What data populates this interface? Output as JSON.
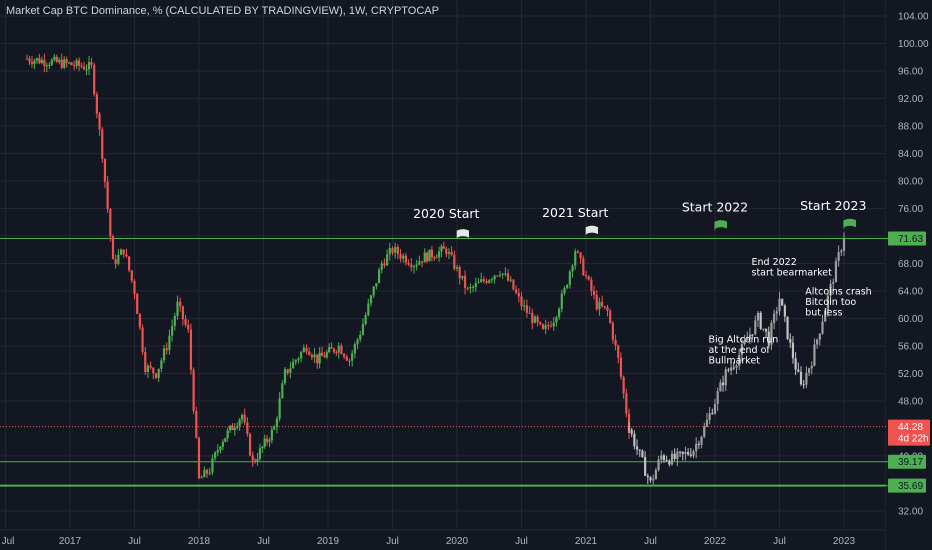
{
  "colors": {
    "background": "#131722",
    "grid": "#232734",
    "up": "#26a69a",
    "up_bright": "#4caf50",
    "down": "#ef5350",
    "projection": "#9e9e9e",
    "level_line": "#4caf50",
    "current_line": "#ef5350",
    "text": "#d1d4dc",
    "flag_white": "#e6e6e6",
    "flag_green": "#4caf50"
  },
  "header": {
    "title": "Market Cap BTC Dominance, % (CALCULATED BY TRADINGVIEW), 1W, CRYPTOCAP"
  },
  "chart_data": {
    "type": "candlestick",
    "x_start": "2016-09",
    "x_end": "2023-07",
    "ylim": [
      30,
      104
    ],
    "grid": true,
    "y_ticks": [
      "104.00",
      "100.00",
      "96.00",
      "92.00",
      "88.00",
      "84.00",
      "80.00",
      "76.00",
      "72.00",
      "68.00",
      "64.00",
      "60.00",
      "56.00",
      "52.00",
      "48.00",
      "40.00",
      "32.00"
    ],
    "x_ticks": [
      "Jul",
      "2017",
      "Jul",
      "2018",
      "Jul",
      "2019",
      "Jul",
      "2020",
      "Jul",
      "2021",
      "Jul",
      "2022",
      "Jul",
      "2023"
    ],
    "price_levels": [
      {
        "value": 71.63,
        "label": "71.63"
      },
      {
        "value": 39.17,
        "label": "39.17"
      },
      {
        "value": 35.69,
        "label": "35.69"
      }
    ],
    "current_price": {
      "value": 44.28,
      "label": "44.28",
      "countdown": "4d 22h"
    },
    "actual_series": [
      {
        "date": "2016-09",
        "value": 97.8
      },
      {
        "date": "2016-12",
        "value": 97.2
      },
      {
        "date": "2017-03",
        "value": 96.5
      },
      {
        "date": "2017-04",
        "value": 84.0
      },
      {
        "date": "2017-05",
        "value": 68.0
      },
      {
        "date": "2017-06",
        "value": 70.0
      },
      {
        "date": "2017-07",
        "value": 64.0
      },
      {
        "date": "2017-08",
        "value": 53.0
      },
      {
        "date": "2017-09",
        "value": 52.0
      },
      {
        "date": "2017-10",
        "value": 56.0
      },
      {
        "date": "2017-11",
        "value": 62.0
      },
      {
        "date": "2017-12",
        "value": 58.0
      },
      {
        "date": "2018-01",
        "value": 36.5
      },
      {
        "date": "2018-02",
        "value": 38.0
      },
      {
        "date": "2018-03",
        "value": 42.0
      },
      {
        "date": "2018-05",
        "value": 46.0
      },
      {
        "date": "2018-06",
        "value": 39.0
      },
      {
        "date": "2018-08",
        "value": 44.0
      },
      {
        "date": "2018-09",
        "value": 52.0
      },
      {
        "date": "2018-10",
        "value": 54.0
      },
      {
        "date": "2018-11",
        "value": 56.0
      },
      {
        "date": "2018-12",
        "value": 54.0
      },
      {
        "date": "2019-02",
        "value": 56.0
      },
      {
        "date": "2019-03",
        "value": 54.0
      },
      {
        "date": "2019-04",
        "value": 58.0
      },
      {
        "date": "2019-05",
        "value": 63.0
      },
      {
        "date": "2019-06",
        "value": 68.0
      },
      {
        "date": "2019-07",
        "value": 70.0
      },
      {
        "date": "2019-08",
        "value": 69.0
      },
      {
        "date": "2019-09",
        "value": 68.0
      },
      {
        "date": "2019-10",
        "value": 69.0
      },
      {
        "date": "2019-12",
        "value": 70.0
      },
      {
        "date": "2020-01",
        "value": 67.0
      },
      {
        "date": "2020-02",
        "value": 64.0
      },
      {
        "date": "2020-03",
        "value": 65.0
      },
      {
        "date": "2020-04",
        "value": 66.0
      },
      {
        "date": "2020-05",
        "value": 67.0
      },
      {
        "date": "2020-06",
        "value": 65.0
      },
      {
        "date": "2020-07",
        "value": 62.0
      },
      {
        "date": "2020-08",
        "value": 60.0
      },
      {
        "date": "2020-09",
        "value": 58.0
      },
      {
        "date": "2020-10",
        "value": 60.0
      },
      {
        "date": "2020-11",
        "value": 64.0
      },
      {
        "date": "2020-12",
        "value": 70.0
      },
      {
        "date": "2021-01",
        "value": 66.0
      },
      {
        "date": "2021-02",
        "value": 62.0
      },
      {
        "date": "2021-03",
        "value": 61.0
      },
      {
        "date": "2021-04",
        "value": 54.0
      },
      {
        "date": "2021-05",
        "value": 44.0
      }
    ],
    "projection_series": [
      {
        "date": "2021-05",
        "value": 44.0
      },
      {
        "date": "2021-06",
        "value": 40.0
      },
      {
        "date": "2021-07",
        "value": 36.0
      },
      {
        "date": "2021-08",
        "value": 40.0
      },
      {
        "date": "2021-09",
        "value": 39.5
      },
      {
        "date": "2021-10",
        "value": 40.0
      },
      {
        "date": "2021-11",
        "value": 41.0
      },
      {
        "date": "2021-12",
        "value": 44.0
      },
      {
        "date": "2022-01",
        "value": 48.0
      },
      {
        "date": "2022-02",
        "value": 52.0
      },
      {
        "date": "2022-03",
        "value": 54.0
      },
      {
        "date": "2022-04",
        "value": 57.0
      },
      {
        "date": "2022-05",
        "value": 60.0
      },
      {
        "date": "2022-06",
        "value": 57.0
      },
      {
        "date": "2022-07",
        "value": 63.0
      },
      {
        "date": "2022-08",
        "value": 56.0
      },
      {
        "date": "2022-09",
        "value": 50.0
      },
      {
        "date": "2022-10",
        "value": 54.0
      },
      {
        "date": "2022-11",
        "value": 60.0
      },
      {
        "date": "2022-12",
        "value": 66.0
      },
      {
        "date": "2023-01",
        "value": 72.0
      }
    ],
    "annotations": [
      {
        "text": "2020 Start",
        "date": "2019-12",
        "value": 74.6,
        "size": "big"
      },
      {
        "text": "2021 Start",
        "date": "2020-12",
        "value": 74.8,
        "size": "big"
      },
      {
        "text": "Start 2022",
        "date": "2022-01",
        "value": 75.6,
        "size": "big"
      },
      {
        "text": "Start 2023",
        "date": "2022-12",
        "value": 75.8,
        "size": "big"
      },
      {
        "lines": [
          "End 2022",
          "start bearmarket"
        ],
        "date": "2022-07",
        "value": 67.8,
        "size": "small"
      },
      {
        "lines": [
          "Altcoins crash",
          "Bitcoin too",
          "but less"
        ],
        "date": "2022-12",
        "value": 63.5,
        "size": "small"
      },
      {
        "lines": [
          "Big Altcoin run",
          "at the end of",
          "Bullmarket"
        ],
        "date": "2022-03",
        "value": 56.5,
        "size": "small"
      }
    ],
    "flags": [
      {
        "date": "2020-01",
        "value": 72.5,
        "color": "white"
      },
      {
        "date": "2021-01",
        "value": 73.0,
        "color": "white"
      },
      {
        "date": "2022-01",
        "value": 73.8,
        "color": "green"
      },
      {
        "date": "2023-01",
        "value": 74.0,
        "color": "green"
      }
    ]
  }
}
